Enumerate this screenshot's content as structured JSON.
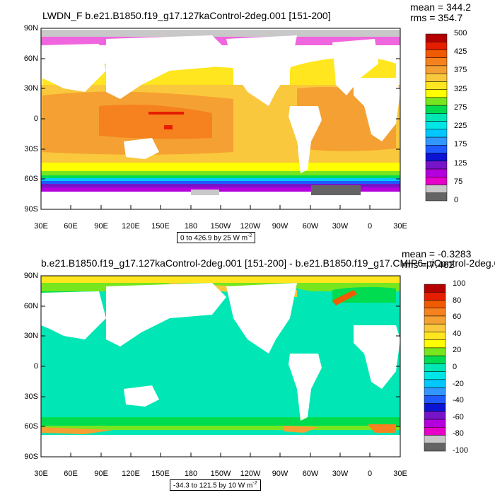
{
  "panels": [
    {
      "title": "LWDN_F b.e21.B1850.f19_g17.127kaControl-2deg.001 [151-200]",
      "mean": "mean = 344.2",
      "rms": "rms = 354.7",
      "range_text": "0 to 426.9 by 25",
      "units_base": "W m",
      "units_exp": "-2",
      "colorbar": {
        "labels": [
          "500",
          "425",
          "375",
          "325",
          "275",
          "225",
          "175",
          "125",
          "75",
          "0"
        ],
        "colors": [
          "#b40000",
          "#e61e00",
          "#f05a00",
          "#f5821e",
          "#f5a032",
          "#fac83c",
          "#ffe61e",
          "#ffff00",
          "#78e61e",
          "#00dc50",
          "#00e6b4",
          "#00e6e6",
          "#00c8ff",
          "#3296ff",
          "#1e5aff",
          "#0a14d2",
          "#7814c8",
          "#b400dc",
          "#e600c8",
          "#c8c8c8",
          "#646464"
        ]
      }
    },
    {
      "title": "b.e21.B1850.f19_g17.127kaControl-2deg.001 [151-200] - b.e21.B1850.f19_g17.CMIP6-piControl-2deg.0",
      "mean": "mean = -0.3283",
      "rms": "rms = 7.462",
      "range_text": "-34.3 to 121.5 by 10",
      "units_base": "W m",
      "units_exp": "-2",
      "colorbar": {
        "labels": [
          "100",
          "80",
          "60",
          "40",
          "20",
          "0",
          "-20",
          "-40",
          "-60",
          "-80",
          "-100"
        ],
        "colors": [
          "#b40000",
          "#e61e00",
          "#f05a00",
          "#f5821e",
          "#f5a032",
          "#fac83c",
          "#ffe61e",
          "#ffff00",
          "#78e61e",
          "#00dc50",
          "#00e6b4",
          "#00e6e6",
          "#00c8ff",
          "#3296ff",
          "#1e5aff",
          "#0a14d2",
          "#7814c8",
          "#b400dc",
          "#e600c8",
          "#c8c8c8",
          "#646464"
        ]
      }
    }
  ],
  "lat_labels": [
    "90N",
    "60N",
    "30N",
    "0",
    "30S",
    "60S",
    "90S"
  ],
  "lon_labels": [
    "30E",
    "60E",
    "90E",
    "120E",
    "150E",
    "180",
    "150W",
    "120W",
    "90W",
    "60W",
    "30W",
    "0",
    "30E"
  ]
}
